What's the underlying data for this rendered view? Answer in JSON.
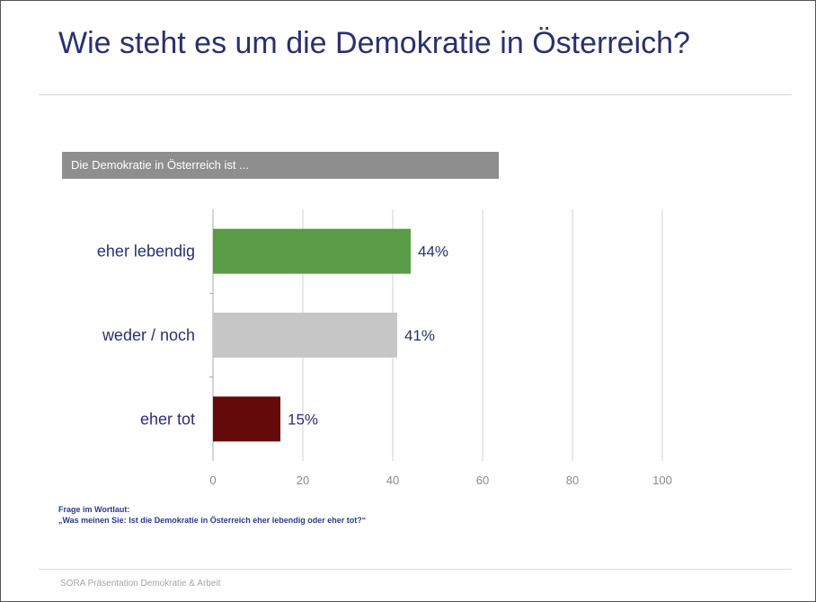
{
  "slide": {
    "title": "Wie steht es um die Demokratie in Österreich?",
    "chart_header": "Die Demokratie in Österreich ist ...",
    "question_label": "Frage im Wortlaut:",
    "question_text": "„Was meinen Sie: Ist die Demokratie in Österreich eher lebendig oder eher tot?“",
    "footer": "SORA Präsentation Demokratie & Arbeit"
  },
  "chart_data": {
    "type": "bar",
    "orientation": "horizontal",
    "categories": [
      "eher lebendig",
      "weder / noch",
      "eher tot"
    ],
    "values": [
      44,
      41,
      15
    ],
    "value_labels": [
      "44%",
      "41%",
      "15%"
    ],
    "colors": [
      "#5a9c46",
      "#c6c6c6",
      "#650a0a"
    ],
    "xlim": [
      0,
      100
    ],
    "xticks": [
      0,
      20,
      40,
      60,
      80,
      100
    ],
    "grid": true
  }
}
